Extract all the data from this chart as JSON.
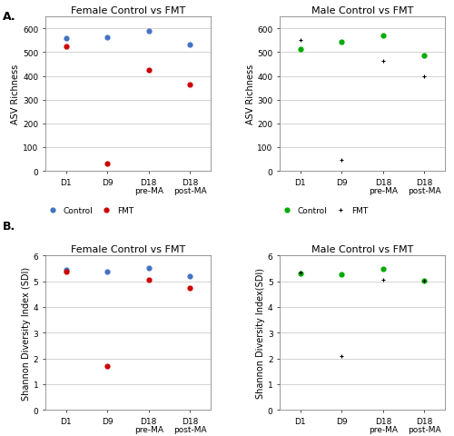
{
  "female_asv_control": [
    560,
    563,
    590,
    533
  ],
  "female_asv_fmt": [
    525,
    30,
    425,
    365
  ],
  "male_asv_control": [
    513,
    543,
    570,
    487
  ],
  "male_asv_fmt": [
    550,
    45,
    465,
    400
  ],
  "female_sdi_control": [
    5.45,
    5.38,
    5.52,
    5.2
  ],
  "female_sdi_fmt": [
    5.38,
    1.7,
    5.05,
    4.75
  ],
  "male_sdi_control": [
    5.3,
    5.27,
    5.5,
    5.02
  ],
  "male_sdi_fmt": [
    5.35,
    2.1,
    5.05,
    5.03
  ],
  "female_control_color": "#4472C4",
  "female_fmt_color": "#CC0000",
  "male_control_color": "#00AA00",
  "male_fmt_color": "#000000",
  "title_female_asv": "Female Control vs FMT",
  "title_male_asv": "Male Control vs FMT",
  "title_female_sdi": "Female Control vs FMT",
  "title_male_sdi": "Male Control vs FMT",
  "ylabel_asv": "ASV Richness",
  "ylabel_sdi_female": "Shannon Diversity Index (SDI)",
  "ylabel_sdi_male": "Shannon Diversity Index(SDI)",
  "ylim_asv": [
    0,
    650
  ],
  "ylim_sdi": [
    0,
    6
  ],
  "yticks_asv": [
    0,
    100,
    200,
    300,
    400,
    500,
    600
  ],
  "yticks_sdi": [
    0,
    1,
    2,
    3,
    4,
    5,
    6
  ],
  "panel_a_label": "A.",
  "panel_b_label": "B.",
  "dot_size": 12,
  "background_color": "#FFFFFF",
  "grid_color": "#CCCCCC",
  "title_fontsize": 8,
  "label_fontsize": 7,
  "tick_fontsize": 6.5,
  "legend_fontsize": 6.5
}
